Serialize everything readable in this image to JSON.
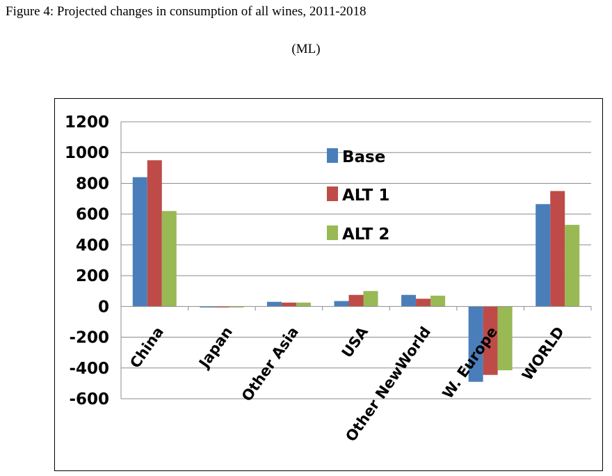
{
  "caption": "Figure 4: Projected changes in consumption of all wines, 2011-2018",
  "unit_label": "(ML)",
  "chart_data": {
    "type": "bar",
    "title": "Projected changes in consumption of all wines, 2011-2018",
    "ylabel": "(ML)",
    "xlabel": "",
    "ylim": [
      -600,
      1200
    ],
    "yticks": [
      1200,
      1000,
      800,
      600,
      400,
      200,
      0,
      -200,
      -400,
      -600
    ],
    "grid": true,
    "legend_position": "center",
    "categories": [
      "China",
      "Japan",
      "Other Asia",
      "USA",
      "Other NewWorld",
      "W. Europe",
      "WORLD"
    ],
    "series": [
      {
        "name": "Base",
        "color": "#4a7ebb",
        "values": [
          840,
          -5,
          30,
          35,
          75,
          -490,
          665
        ]
      },
      {
        "name": "ALT 1",
        "color": "#be4b48",
        "values": [
          950,
          -5,
          25,
          75,
          50,
          -445,
          750
        ]
      },
      {
        "name": "ALT 2",
        "color": "#98b954",
        "values": [
          620,
          -5,
          25,
          100,
          70,
          -415,
          530
        ]
      }
    ]
  }
}
